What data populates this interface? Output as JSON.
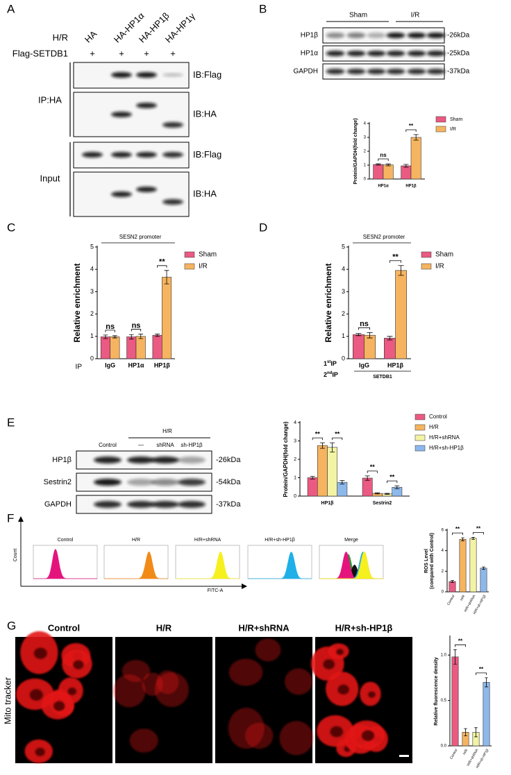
{
  "panels": {
    "A": {
      "letter": "A",
      "row_labels": [
        "H/R",
        "Flag-SETDB1"
      ],
      "columns": [
        "HA",
        "HA-HP1α",
        "HA-HP1β",
        "HA-HP1γ"
      ],
      "flag": [
        "+",
        "+",
        "+",
        "+"
      ],
      "groups": [
        {
          "label": "IP:HA",
          "blots": [
            "IB:Flag",
            "IB:HA"
          ]
        },
        {
          "label": "Input",
          "blots": [
            "IB:Flag",
            "IB:HA"
          ]
        }
      ]
    },
    "B": {
      "letter": "B",
      "groups": [
        "Sham",
        "I/R"
      ],
      "rows": [
        {
          "name": "HP1β",
          "size": "-26kDa"
        },
        {
          "name": "HP1α",
          "size": "-25kDa"
        },
        {
          "name": "GAPDH",
          "size": "-37kDa"
        }
      ]
    },
    "C": {
      "letter": "C"
    },
    "D": {
      "letter": "D"
    },
    "E": {
      "letter": "E",
      "group": "H/R",
      "lanes": [
        "Control",
        "—",
        "shRNA",
        "sh-HP1β"
      ],
      "rows": [
        {
          "name": "HP1β",
          "size": "-26kDa"
        },
        {
          "name": "Sestrin2",
          "size": "-54kDa"
        },
        {
          "name": "GAPDH",
          "size": "-37kDa"
        }
      ]
    },
    "F": {
      "letter": "F",
      "titles": [
        "Control",
        "H/R",
        "H/R+shRNA",
        "H/R+sh-HP1β",
        "Merge"
      ],
      "ylabel": "Count",
      "xlabel": "FITC-A"
    },
    "G": {
      "letter": "G",
      "titles": [
        "Control",
        "H/R",
        "H/R+shRNA",
        "H/R+sh-HP1β"
      ],
      "row_label": "Mito tracker"
    }
  },
  "chart_data": [
    {
      "type": "bar",
      "ylabel": "Protein/GAPDH(fold change)",
      "categories": [
        "HP1α",
        "HP1β"
      ],
      "series": [
        {
          "name": "Sham",
          "color": "#ea5a82",
          "values": [
            1.05,
            0.95
          ],
          "errors": [
            0.05,
            0.1
          ]
        },
        {
          "name": "I/R",
          "color": "#f6b460",
          "values": [
            1.02,
            3.0
          ],
          "errors": [
            0.07,
            0.2
          ]
        }
      ],
      "ylim": [
        0,
        4
      ],
      "yticks": [
        0,
        1,
        2,
        3,
        4
      ],
      "annotations": [
        "ns",
        "**"
      ]
    },
    {
      "type": "bar",
      "title": "SESN2 promoter",
      "ylabel": "Relative enrichment",
      "xlabel": "IP",
      "categories": [
        "IgG",
        "HP1α",
        "HP1β"
      ],
      "series": [
        {
          "name": "Sham",
          "color": "#ea5a82",
          "values": [
            0.98,
            0.98,
            1.05
          ],
          "errors": [
            0.08,
            0.1,
            0.05
          ]
        },
        {
          "name": "I/R",
          "color": "#f6b460",
          "values": [
            0.98,
            1.0,
            3.65
          ],
          "errors": [
            0.05,
            0.1,
            0.3
          ]
        }
      ],
      "ylim": [
        0,
        5
      ],
      "yticks": [
        0,
        1,
        2,
        3,
        4,
        5
      ],
      "annotations": [
        "ns",
        "ns",
        "**"
      ]
    },
    {
      "type": "bar",
      "title": "SESN2 promoter",
      "ylabel": "Relative enrichment",
      "row_labels": [
        {
          "text": "1",
          "sup": "st",
          "tail": "IP"
        },
        {
          "text": "2",
          "sup": "nd",
          "tail": "IP"
        }
      ],
      "group_label": "SETDB1",
      "categories": [
        "IgG",
        "HP1β"
      ],
      "series": [
        {
          "name": "Sham",
          "color": "#ea5a82",
          "values": [
            1.08,
            0.92
          ],
          "errors": [
            0.05,
            0.08
          ]
        },
        {
          "name": "I/R",
          "color": "#f6b460",
          "values": [
            1.05,
            3.95
          ],
          "errors": [
            0.12,
            0.22
          ]
        }
      ],
      "ylim": [
        0,
        5
      ],
      "yticks": [
        0,
        1,
        2,
        3,
        4,
        5
      ],
      "annotations": [
        "ns",
        "**"
      ]
    },
    {
      "type": "bar",
      "ylabel": "Protein/GAPDH(fold change)",
      "categories": [
        "HP1β",
        "Sestrin2"
      ],
      "series": [
        {
          "name": "Control",
          "color": "#ea5a82",
          "values": [
            1.0,
            0.98
          ],
          "errors": [
            0.07,
            0.12
          ]
        },
        {
          "name": "H/R",
          "color": "#f6b460",
          "values": [
            2.75,
            0.15
          ],
          "errors": [
            0.15,
            0.03
          ]
        },
        {
          "name": "H/R+shRNA",
          "color": "#f3f3a6",
          "values": [
            2.65,
            0.12
          ],
          "errors": [
            0.25,
            0.03
          ]
        },
        {
          "name": "H/R+sh-HP1β",
          "color": "#8db8ec",
          "values": [
            0.75,
            0.48
          ],
          "errors": [
            0.1,
            0.08
          ]
        }
      ],
      "ylim": [
        0,
        4
      ],
      "yticks": [
        0,
        1,
        2,
        3,
        4
      ],
      "annotations": [
        "**",
        "**",
        "**",
        "**"
      ]
    },
    {
      "type": "bar",
      "ylabel": [
        "ROS Level",
        "(compared with Control)"
      ],
      "categories": [
        "Control",
        "H/R",
        "H/R+shRNA",
        "H/R+sh-HP1β"
      ],
      "values": [
        1.0,
        5.1,
        5.2,
        2.3
      ],
      "errors": [
        0.1,
        0.15,
        0.1,
        0.12
      ],
      "colors": [
        "#ea5a82",
        "#f6b460",
        "#f3f3a6",
        "#8db8ec"
      ],
      "ylim": [
        0,
        6
      ],
      "yticks": [
        0,
        2,
        4,
        6
      ],
      "annotations": [
        "**",
        "**"
      ]
    },
    {
      "type": "bar",
      "ylabel": "Relative fluorescence density",
      "categories": [
        "Control",
        "H/R",
        "H/R+shRNA",
        "H/R+sh-HP1β"
      ],
      "values": [
        0.98,
        0.15,
        0.15,
        0.7
      ],
      "errors": [
        0.08,
        0.04,
        0.05,
        0.05
      ],
      "colors": [
        "#ea5a82",
        "#f6b460",
        "#f3f3a6",
        "#8db8ec"
      ],
      "ylim": [
        0,
        1.2
      ],
      "yticks": [
        {
          "value": 0,
          "label": "0.0"
        },
        {
          "value": 0.5,
          "label": "0.5"
        },
        {
          "value": 1,
          "label": "1.0"
        }
      ],
      "annotations": [
        "**",
        "**"
      ]
    }
  ]
}
